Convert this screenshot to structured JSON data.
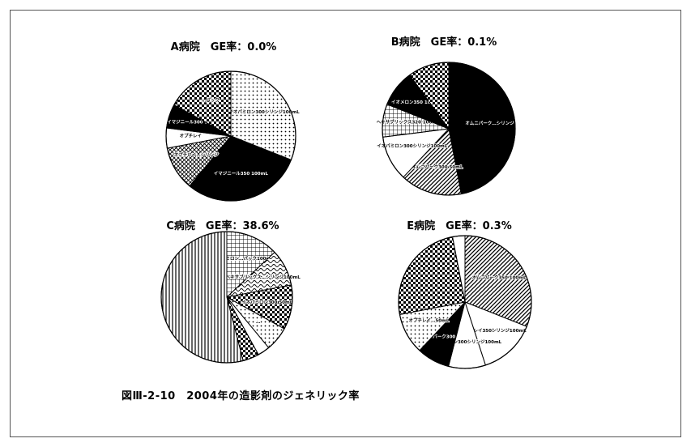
{
  "figure_caption": "図Ⅲ-2-10　2004年の造影剤のジェネリック率",
  "chart_data": [
    {
      "type": "pie",
      "title": "A病院　GE率：0.0%",
      "slices": [
        {
          "label": "イオパミロン300シリンジ100mL",
          "value": 31,
          "pattern": "dots"
        },
        {
          "label": "イマジニール350 100mL",
          "value": 30,
          "pattern": "solid-black"
        },
        {
          "label": "オプチレイ…シリンジ",
          "value": 11,
          "pattern": "crosshatch"
        },
        {
          "label": "オプチレイ",
          "value": 5,
          "pattern": "white"
        },
        {
          "label": "イマジニール300 50mL",
          "value": 6,
          "pattern": "solid-black"
        },
        {
          "label": "…パック",
          "value": 17,
          "pattern": "checker"
        }
      ]
    },
    {
      "type": "pie",
      "title": "B病院　GE率：0.1%",
      "slices": [
        {
          "label": "オムニパーク…シリンジ",
          "value": 47,
          "pattern": "solid-black"
        },
        {
          "label": "オムニパーク300 50mL",
          "value": 15,
          "pattern": "diagonal"
        },
        {
          "label": "イオパミロン300シリンジ100mL",
          "value": 11,
          "pattern": "white"
        },
        {
          "label": "ヘキサブリックス320 100mL",
          "value": 8,
          "pattern": "grid"
        },
        {
          "label": "イオメロン350 100mL",
          "value": 9,
          "pattern": "solid-black"
        },
        {
          "label": "",
          "value": 10,
          "pattern": "checker"
        }
      ]
    },
    {
      "type": "pie",
      "title": "C病院　GE率：38.6%",
      "slices": [
        {
          "label": "イオパミロン…パック100mL",
          "value": 13,
          "pattern": "grid"
        },
        {
          "label": "ヘキサブリックス…シリンジ100mL",
          "value": 9,
          "pattern": "wavy"
        },
        {
          "label": "イオパミロン300 50mL",
          "value": 11,
          "pattern": "checker"
        },
        {
          "label": "…",
          "value": 6,
          "pattern": "dots"
        },
        {
          "label": "",
          "value": 3,
          "pattern": "white"
        },
        {
          "label": "",
          "value": 4,
          "pattern": "checker"
        },
        {
          "label": "",
          "value": 54,
          "pattern": "vertical"
        }
      ]
    },
    {
      "type": "pie",
      "title": "E病院　GE率：0.3%",
      "slices": [
        {
          "label": "オムニパーク350 100mL",
          "value": 31,
          "pattern": "diagonal"
        },
        {
          "label": "オプチレイ350シリンジ100mL",
          "value": 14,
          "pattern": "white"
        },
        {
          "label": "イオパミロン300シリンジ100mL",
          "value": 9,
          "pattern": "white"
        },
        {
          "label": "オムニパーク300 50mL",
          "value": 8,
          "pattern": "solid-black"
        },
        {
          "label": "オプチレイ…50mL",
          "value": 10,
          "pattern": "dots"
        },
        {
          "label": "",
          "value": 25,
          "pattern": "checker"
        },
        {
          "label": "",
          "value": 3,
          "pattern": "white"
        }
      ]
    }
  ]
}
